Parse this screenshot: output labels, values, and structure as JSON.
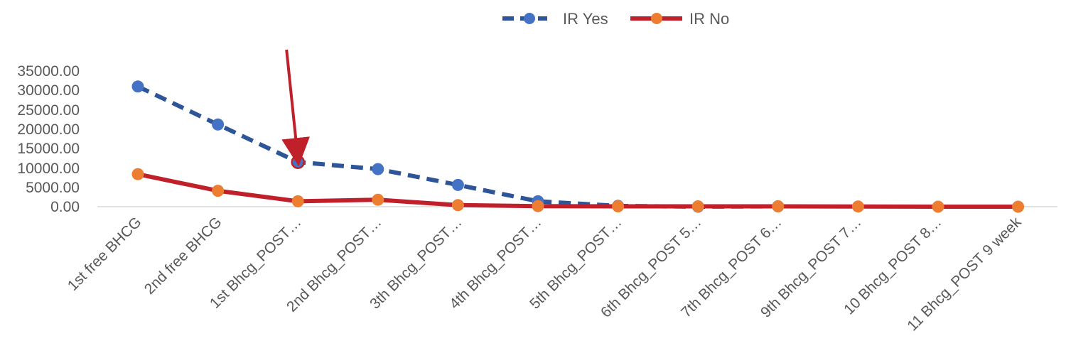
{
  "chart_data": {
    "type": "line",
    "categories": [
      "1st free BHCG",
      "2nd  free BHCG",
      "1st Bhcg_POST…",
      "2nd Bhcg_POST…",
      "3th Bhcg_POST…",
      "4th Bhcg_POST…",
      "5th Bhcg_POST…",
      "6th Bhcg_POST 5…",
      "7th Bhcg_POST 6…",
      "9th Bhcg_POST 7…",
      "10 Bhcg_POST 8…",
      "11 Bhcg_POST 9 week"
    ],
    "series": [
      {
        "name": "IR Yes",
        "values": [
          31000,
          21200,
          11500,
          9700,
          5600,
          1400,
          200,
          0,
          100,
          null,
          null,
          null
        ],
        "color": "#2E5597",
        "marker_color": "#4472C4",
        "line_style": "dashed"
      },
      {
        "name": "IR No",
        "values": [
          8400,
          4100,
          1400,
          1800,
          400,
          150,
          100,
          100,
          100,
          50,
          0,
          0
        ],
        "color": "#C0202A",
        "marker_color": "#ED7D31",
        "line_style": "solid"
      }
    ],
    "y_ticks": [
      "0.00",
      "5000.00",
      "10000.00",
      "15000.00",
      "20000.00",
      "25000.00",
      "30000.00",
      "35000.00"
    ],
    "ylim": [
      0,
      35000
    ],
    "grid": false,
    "legend_position": "top",
    "annotation": {
      "type": "arrow",
      "color": "#C0202A",
      "points_to_category": "1st Bhcg_POST…",
      "points_to_series": "IR Yes"
    }
  }
}
